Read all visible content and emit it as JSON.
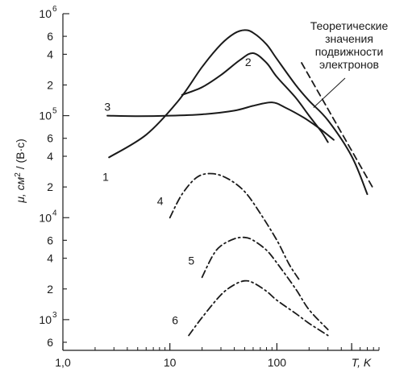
{
  "chart_data": {
    "type": "line",
    "xscale": "log",
    "yscale": "log",
    "xlim": [
      1,
      900
    ],
    "ylim": [
      500,
      1000000
    ],
    "xlabel": "T, K",
    "ylabel_main": "μ, см",
    "ylabel_sup": "2",
    "ylabel_tail": " / (В·с)",
    "x_ticks": [
      {
        "value": 1,
        "label": "1,0"
      },
      {
        "value": 10,
        "label": "10"
      },
      {
        "value": 100,
        "label": "100"
      }
    ],
    "y_ticks": [
      {
        "value": 1000000,
        "base": "10",
        "exp": "6"
      },
      {
        "value": 600000,
        "label": "6"
      },
      {
        "value": 400000,
        "label": "4"
      },
      {
        "value": 200000,
        "label": "2"
      },
      {
        "value": 100000,
        "base": "10",
        "exp": "5"
      },
      {
        "value": 60000,
        "label": "6"
      },
      {
        "value": 40000,
        "label": "4"
      },
      {
        "value": 20000,
        "label": "2"
      },
      {
        "value": 10000,
        "base": "10",
        "exp": "4"
      },
      {
        "value": 6000,
        "label": "6"
      },
      {
        "value": 4000,
        "label": "4"
      },
      {
        "value": 2000,
        "label": "2"
      },
      {
        "value": 1000,
        "base": "10",
        "exp": "3"
      },
      {
        "value": 600,
        "label": "6"
      }
    ],
    "annotation": {
      "lines": [
        "Теоретические",
        "значения",
        "подвижности",
        "электронов"
      ]
    },
    "series": [
      {
        "label": "1",
        "style": "solid",
        "x": [
          2.7,
          6,
          12,
          20,
          30,
          40,
          50,
          60,
          80,
          100,
          150,
          200,
          300,
          500,
          700
        ],
        "y": [
          39000,
          65000,
          140000,
          300000,
          500000,
          640000,
          690000,
          650000,
          500000,
          360000,
          200000,
          140000,
          90000,
          40000,
          17000
        ]
      },
      {
        "label": "2",
        "style": "solid",
        "x": [
          13,
          20,
          30,
          45,
          60,
          80,
          100,
          150,
          200,
          260,
          300
        ],
        "y": [
          160000,
          190000,
          250000,
          350000,
          410000,
          330000,
          240000,
          150000,
          100000,
          70000,
          55000
        ]
      },
      {
        "label": "3",
        "style": "solid",
        "x": [
          2.6,
          5,
          10,
          20,
          40,
          60,
          90,
          120,
          180,
          250,
          340
        ],
        "y": [
          100000,
          99000,
          100000,
          103000,
          112000,
          125000,
          135000,
          120000,
          95000,
          75000,
          58000
        ]
      },
      {
        "label": "4",
        "style": "dashdot",
        "x": [
          10,
          13,
          18,
          25,
          35,
          50,
          70,
          100,
          130,
          160
        ],
        "y": [
          10000,
          17000,
          25000,
          27000,
          24000,
          18000,
          11000,
          6000,
          3500,
          2500
        ]
      },
      {
        "label": "5",
        "style": "dashdot",
        "x": [
          20,
          25,
          30,
          40,
          50,
          60,
          80,
          100,
          150,
          200,
          300
        ],
        "y": [
          2600,
          4200,
          5300,
          6200,
          6400,
          6000,
          4800,
          3600,
          2000,
          1250,
          800
        ]
      },
      {
        "label": "6",
        "style": "dashdot",
        "x": [
          15,
          20,
          30,
          40,
          50,
          60,
          80,
          100,
          150,
          200,
          300
        ],
        "y": [
          700,
          1050,
          1750,
          2200,
          2400,
          2300,
          1900,
          1550,
          1150,
          920,
          700
        ]
      },
      {
        "style": "dashed",
        "x": [
          170,
          780
        ],
        "y": [
          330000,
          20000
        ]
      }
    ]
  }
}
